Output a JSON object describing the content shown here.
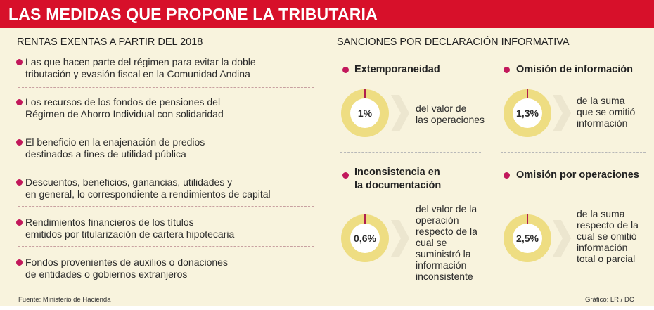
{
  "header": {
    "title": "LAS MEDIDAS QUE PROPONE LA TRIBUTARIA"
  },
  "left": {
    "title": "RENTAS EXENTAS A PARTIR DEL 2018",
    "items": [
      {
        "line1": "Las que hacen parte del régimen para evitar la doble",
        "line2": "tributación y evasión fiscal en la Comunidad Andina"
      },
      {
        "line1": "Los recursos de los fondos de pensiones del",
        "line2": "Régimen de Ahorro Individual con solidaridad"
      },
      {
        "line1": "El beneficio en la enajenación de predios",
        "line2": "destinados a fines de utilidad pública"
      },
      {
        "line1": "Descuentos, beneficios, ganancias, utilidades y",
        "line2": "en general, lo correspondiente a rendimientos de capital"
      },
      {
        "line1": "Rendimientos financieros de los títulos",
        "line2": "emitidos por titularización de cartera hipotecaria"
      },
      {
        "line1": "Fondos provenientes de auxilios o donaciones",
        "line2": "de entidades o gobiernos extranjeros"
      }
    ]
  },
  "right": {
    "title": "SANCIONES POR DECLARACIÓN INFORMATIVA",
    "cards": [
      {
        "title": [
          "Extemporaneidad"
        ],
        "value": "1%",
        "pct": 1,
        "desc": [
          "del valor de",
          "las operaciones"
        ]
      },
      {
        "title": [
          "Omisión de información"
        ],
        "value": "1,3%",
        "pct": 1.3,
        "desc": [
          "de la suma",
          "que se omitió",
          "información"
        ]
      },
      {
        "title": [
          "Inconsistencia en",
          "la documentación"
        ],
        "value": "0,6%",
        "pct": 0.6,
        "desc": [
          "del valor de la",
          "operación",
          "respecto de la",
          "cual se",
          "suministró la",
          "información",
          "inconsistente"
        ]
      },
      {
        "title": [
          "Omisión por operaciones"
        ],
        "value": "2,5%",
        "pct": 2.5,
        "desc": [
          "de la suma",
          "respecto de la",
          "cual se omitió",
          "información",
          "total o parcial"
        ]
      }
    ]
  },
  "footer": {
    "source": "Fuente: Ministerio de Hacienda",
    "credit": "Gráfico: LR / DC"
  },
  "colors": {
    "header_bg": "#d7102a",
    "bullet": "#c2185b",
    "donut": "#eedd82",
    "background": "#f8f3dd"
  }
}
